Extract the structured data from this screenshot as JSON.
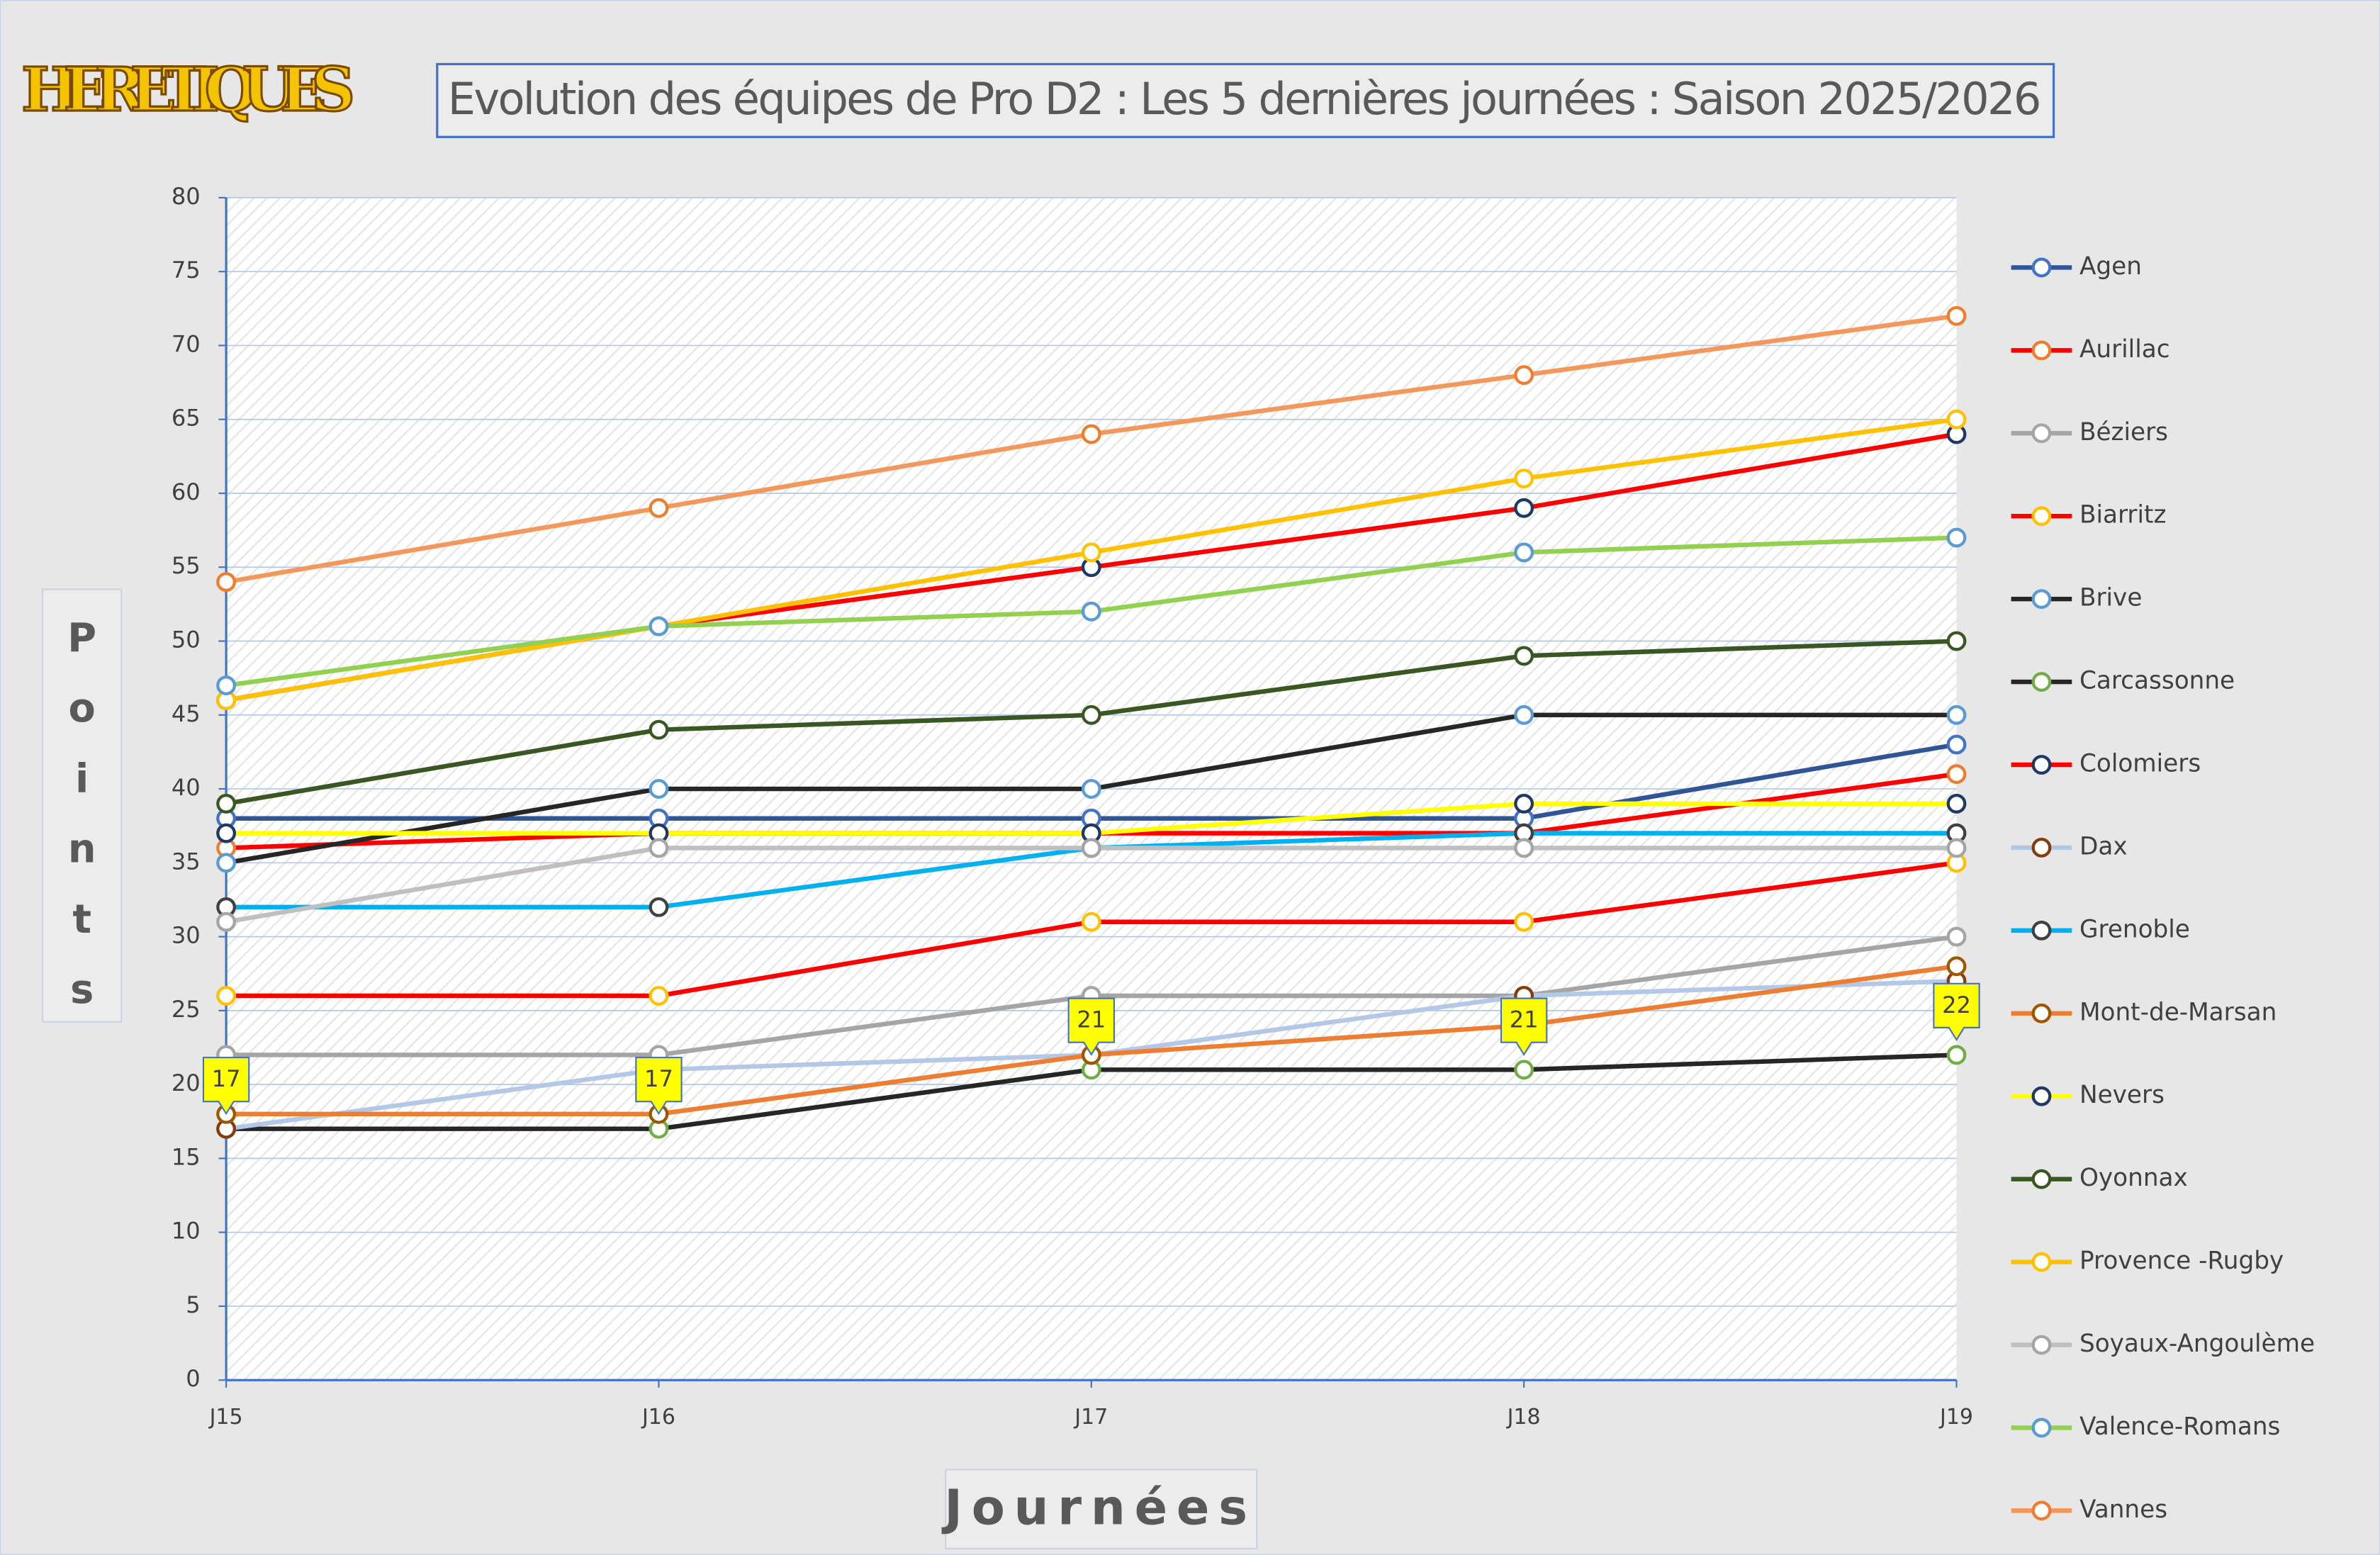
{
  "logo": "HERETIQUES",
  "chart_data": {
    "type": "line",
    "title": "Evolution des équipes de Pro D2 : Les 5 dernières journées : Saison 2025/2026",
    "x_label": "Journées",
    "y_label": "Points",
    "categories": [
      "J15",
      "J16",
      "J17",
      "J18",
      "J19"
    ],
    "ylim": [
      0,
      80
    ],
    "yticks": [
      0,
      5,
      10,
      15,
      20,
      25,
      30,
      35,
      40,
      45,
      50,
      55,
      60,
      65,
      70,
      75,
      80
    ],
    "grid": true,
    "legend": "right",
    "series": [
      {
        "name": "Agen",
        "color": "#2f5597",
        "marker_color": "#4472c4",
        "values": [
          38,
          38,
          38,
          38,
          43
        ]
      },
      {
        "name": "Aurillac",
        "color": "#ff0000",
        "marker_color": "#ed7d31",
        "values": [
          36,
          37,
          37,
          37,
          41
        ]
      },
      {
        "name": "Béziers",
        "color": "#a5a5a5",
        "marker_color": "#a5a5a5",
        "values": [
          22,
          22,
          26,
          26,
          30
        ]
      },
      {
        "name": "Biarritz",
        "color": "#ff0000",
        "marker_color": "#ffc000",
        "values": [
          26,
          26,
          31,
          31,
          35
        ]
      },
      {
        "name": "Brive",
        "color": "#262626",
        "marker_color": "#5b9bd5",
        "values": [
          35,
          40,
          40,
          45,
          45
        ]
      },
      {
        "name": "Carcassonne",
        "color": "#262626",
        "marker_color": "#70ad47",
        "values": [
          17,
          17,
          21,
          21,
          22
        ],
        "show_labels": true
      },
      {
        "name": "Colomiers",
        "color": "#ff0000",
        "marker_color": "#1f3864",
        "values": [
          46,
          51,
          55,
          59,
          64
        ]
      },
      {
        "name": "Dax",
        "color": "#b4c7e7",
        "marker_color": "#843c0c",
        "values": [
          17,
          21,
          22,
          26,
          27
        ]
      },
      {
        "name": "Grenoble",
        "color": "#00b0f0",
        "marker_color": "#404040",
        "values": [
          32,
          32,
          36,
          37,
          37
        ]
      },
      {
        "name": "Mont-de-Marsan",
        "color": "#ed7d31",
        "marker_color": "#9c5700",
        "values": [
          18,
          18,
          22,
          24,
          28
        ]
      },
      {
        "name": "Nevers",
        "color": "#ffff00",
        "marker_color": "#203864",
        "values": [
          37,
          37,
          37,
          39,
          39
        ]
      },
      {
        "name": "Oyonnax",
        "color": "#385723",
        "marker_color": "#385723",
        "values": [
          39,
          44,
          45,
          49,
          50
        ]
      },
      {
        "name": "Provence -Rugby",
        "color": "#ffc000",
        "marker_color": "#ffc000",
        "values": [
          46,
          51,
          56,
          61,
          65
        ]
      },
      {
        "name": "Soyaux-Angoulème",
        "color": "#bfbfbf",
        "marker_color": "#a5a5a5",
        "values": [
          31,
          36,
          36,
          36,
          36
        ]
      },
      {
        "name": "Valence-Romans",
        "color": "#92d050",
        "marker_color": "#5b9bd5",
        "values": [
          47,
          51,
          52,
          56,
          57
        ]
      },
      {
        "name": "Vannes",
        "color": "#f4975b",
        "marker_color": "#ed7d31",
        "values": [
          54,
          59,
          64,
          68,
          72
        ]
      }
    ]
  }
}
